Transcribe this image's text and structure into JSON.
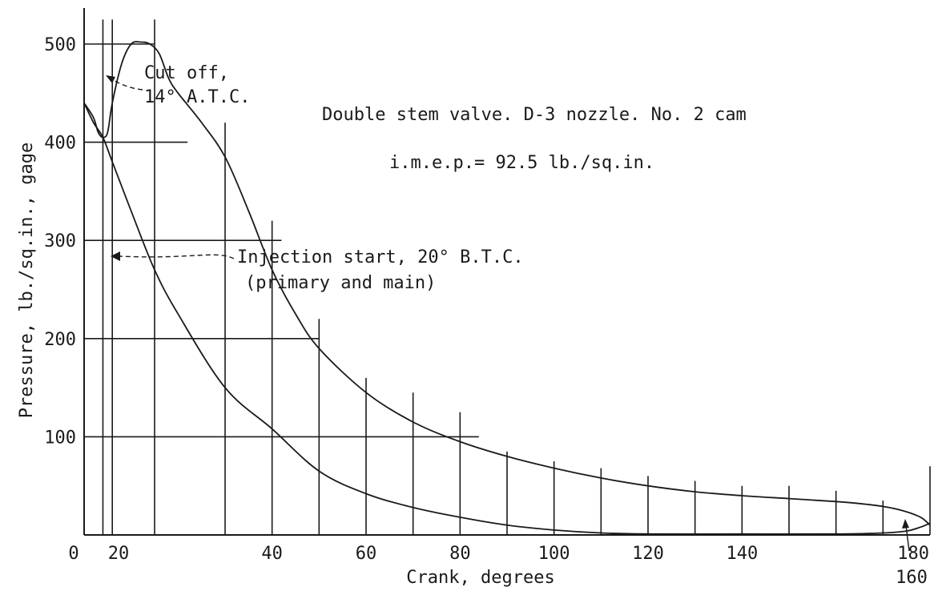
{
  "chart_data": {
    "type": "line",
    "xlabel": "Crank, degrees",
    "ylabel": "Pressure, lb./sq.in., gage",
    "xlim": [
      0,
      180
    ],
    "ylim": [
      0,
      500
    ],
    "x_ticks": [
      {
        "value": 0,
        "label": "0"
      },
      {
        "value": 20,
        "label": "20"
      },
      {
        "value": 40,
        "label": "40"
      },
      {
        "value": 60,
        "label": "60"
      },
      {
        "value": 80,
        "label": "80"
      },
      {
        "value": 100,
        "label": "100"
      },
      {
        "value": 120,
        "label": "120"
      },
      {
        "value": 140,
        "label": "140"
      },
      {
        "value": 160,
        "label": "160"
      },
      {
        "value": 180,
        "label": "180"
      }
    ],
    "y_ticks": [
      {
        "value": 100,
        "label": "100"
      },
      {
        "value": 200,
        "label": "200"
      },
      {
        "value": 300,
        "label": "300"
      },
      {
        "value": 400,
        "label": "400"
      },
      {
        "value": 500,
        "label": "500"
      }
    ],
    "vertical_lines": [
      {
        "x": 4,
        "top": 525
      },
      {
        "x": 6,
        "top": 525
      },
      {
        "x": 15,
        "top": 525
      },
      {
        "x": 30,
        "top": 420
      },
      {
        "x": 40,
        "top": 320
      },
      {
        "x": 50,
        "top": 220
      },
      {
        "x": 60,
        "top": 160
      },
      {
        "x": 70,
        "top": 145
      },
      {
        "x": 80,
        "top": 125
      },
      {
        "x": 90,
        "top": 85
      },
      {
        "x": 100,
        "top": 75
      },
      {
        "x": 110,
        "top": 68
      },
      {
        "x": 120,
        "top": 60
      },
      {
        "x": 130,
        "top": 55
      },
      {
        "x": 140,
        "top": 50
      },
      {
        "x": 150,
        "top": 50
      },
      {
        "x": 160,
        "top": 45
      },
      {
        "x": 170,
        "top": 35
      },
      {
        "x": 180,
        "top": 70
      }
    ],
    "horizontal_lines": [
      {
        "y": 100,
        "x_end": 84
      },
      {
        "y": 200,
        "x_end": 50
      },
      {
        "y": 300,
        "x_end": 42
      },
      {
        "y": 400,
        "x_end": 22
      },
      {
        "y": 500,
        "x_end": 15
      }
    ],
    "series": [
      {
        "x": [
          0,
          2,
          3,
          4,
          5,
          6,
          8,
          10,
          12,
          14,
          16,
          18,
          20,
          25,
          30,
          35,
          40,
          45,
          50,
          60,
          70,
          80,
          90,
          100,
          110,
          120,
          130,
          140,
          150,
          160,
          165,
          170,
          174,
          178,
          180
        ],
        "y": [
          440,
          425,
          410,
          405,
          410,
          440,
          480,
          500,
          502,
          500,
          490,
          465,
          450,
          420,
          385,
          330,
          270,
          225,
          190,
          145,
          115,
          95,
          80,
          68,
          58,
          50,
          44,
          40,
          37,
          34,
          32,
          29,
          25,
          18,
          10
        ]
      },
      {
        "x": [
          0,
          2,
          4,
          6,
          10,
          15,
          20,
          30,
          40,
          50,
          60,
          70,
          80,
          90,
          100,
          110,
          120,
          140,
          160,
          170,
          175,
          178,
          180
        ],
        "y": [
          440,
          420,
          405,
          380,
          330,
          270,
          225,
          150,
          108,
          65,
          42,
          28,
          18,
          10,
          5,
          2,
          1,
          1,
          1,
          2,
          4,
          8,
          12
        ]
      }
    ],
    "annotations": [
      {
        "text": "Cut off,"
      },
      {
        "text": "14° A.T.C."
      },
      {
        "text": "Double stem valve. D-3 nozzle. No. 2 cam"
      },
      {
        "text": "i.m.e.p.= 92.5 lb./sq.in."
      },
      {
        "text": "Injection start, 20° B.T.C."
      },
      {
        "text": "(primary and main)"
      }
    ],
    "grid": "partial"
  }
}
